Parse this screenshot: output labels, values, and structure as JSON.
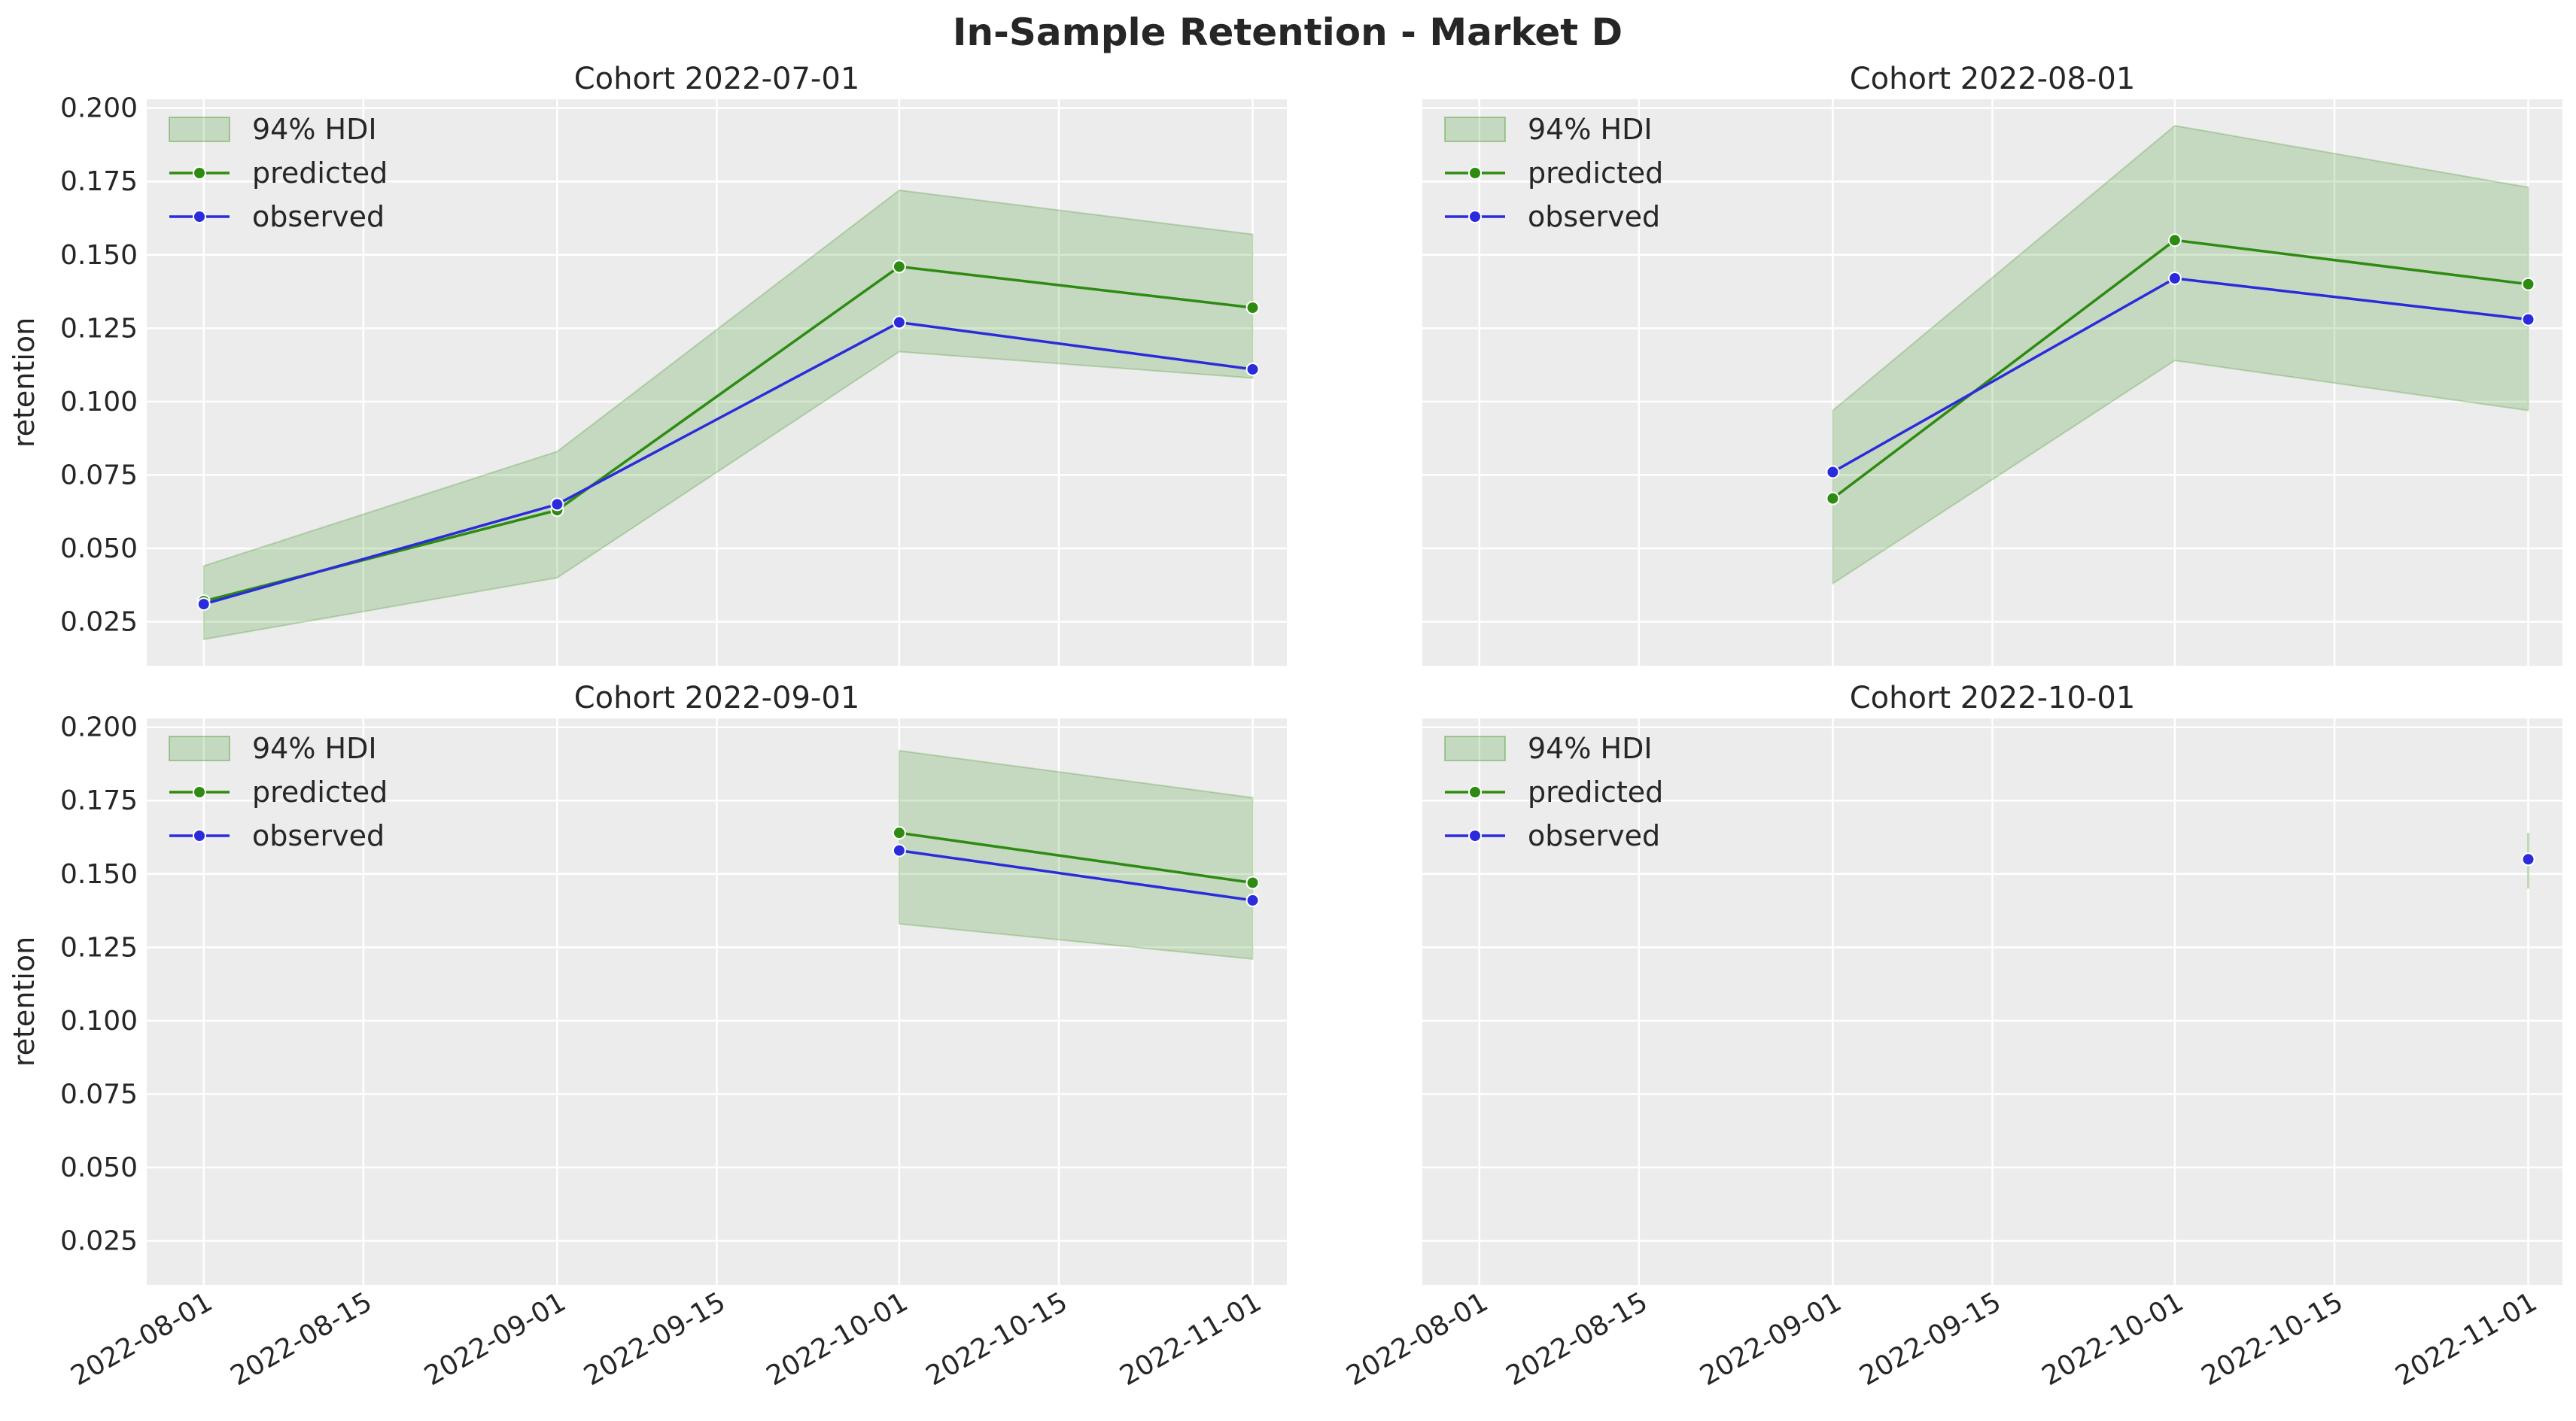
{
  "figure": {
    "title": "In-Sample Retention - Market D",
    "background": "#ffffff",
    "axes_facecolor": "#ececec",
    "grid_color": "#ffffff"
  },
  "legend": {
    "location": "upper-left",
    "entries": [
      {
        "label": "94% HDI",
        "kind": "band",
        "color": "#2e8b12"
      },
      {
        "label": "predicted",
        "kind": "line",
        "color": "#2e8b12"
      },
      {
        "label": "observed",
        "kind": "line",
        "color": "#2b2bdc"
      }
    ]
  },
  "chart_data": {
    "type": "line",
    "shared_axes": true,
    "grid": true,
    "ylabel": "retention",
    "yticks": [
      "0.025",
      "0.050",
      "0.075",
      "0.100",
      "0.125",
      "0.150",
      "0.175",
      "0.200"
    ],
    "ylim": [
      0.01,
      0.203
    ],
    "xticks": [
      "2022-08-01",
      "2022-08-15",
      "2022-09-01",
      "2022-09-15",
      "2022-10-01",
      "2022-10-15",
      "2022-11-01"
    ],
    "xlim": [
      "2022-07-27",
      "2022-11-04"
    ],
    "colors": {
      "predicted": "#2e8b12",
      "observed": "#2b2bdc",
      "hdi_fill": "#2e8b12"
    },
    "panels": [
      {
        "title": "Cohort 2022-07-01",
        "x": [
          "2022-08-01",
          "2022-09-01",
          "2022-10-01",
          "2022-11-01"
        ],
        "predicted": [
          0.032,
          0.063,
          0.146,
          0.132
        ],
        "observed": [
          0.031,
          0.065,
          0.127,
          0.111
        ],
        "hdi_low": [
          0.019,
          0.04,
          0.117,
          0.108
        ],
        "hdi_high": [
          0.044,
          0.083,
          0.172,
          0.157
        ]
      },
      {
        "title": "Cohort 2022-08-01",
        "x": [
          "2022-09-01",
          "2022-10-01",
          "2022-11-01"
        ],
        "predicted": [
          0.067,
          0.155,
          0.14
        ],
        "observed": [
          0.076,
          0.142,
          0.128
        ],
        "hdi_low": [
          0.038,
          0.114,
          0.097
        ],
        "hdi_high": [
          0.097,
          0.194,
          0.173
        ]
      },
      {
        "title": "Cohort 2022-09-01",
        "x": [
          "2022-10-01",
          "2022-11-01"
        ],
        "predicted": [
          0.164,
          0.147
        ],
        "observed": [
          0.158,
          0.141
        ],
        "hdi_low": [
          0.133,
          0.121
        ],
        "hdi_high": [
          0.192,
          0.176
        ]
      },
      {
        "title": "Cohort 2022-10-01",
        "x": [
          "2022-11-01"
        ],
        "predicted": [
          0.155
        ],
        "observed": [
          0.155
        ],
        "hdi_low": [
          0.145
        ],
        "hdi_high": [
          0.164
        ]
      }
    ]
  }
}
